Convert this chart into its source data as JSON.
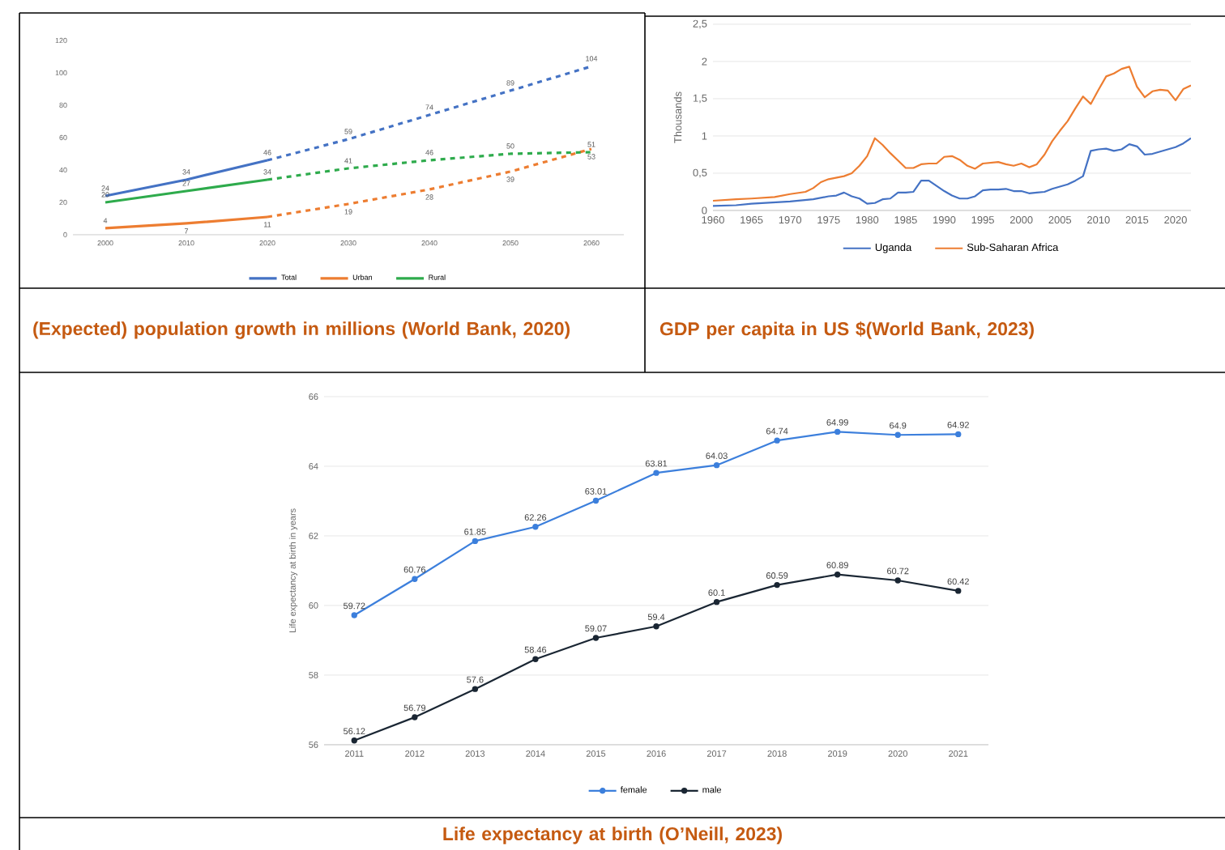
{
  "chart_data": [
    {
      "type": "line",
      "title": "(Expected) population growth in millions (World Bank, 2020)",
      "xlim": [
        1996,
        2064
      ],
      "xticks": [
        2000,
        2010,
        2020,
        2030,
        2040,
        2050,
        2060
      ],
      "ylim": [
        0,
        120
      ],
      "yticks": [
        0,
        20,
        40,
        60,
        80,
        100,
        120
      ],
      "legend": "bottom",
      "series": [
        {
          "name": "Total",
          "color": "#4472c4",
          "x": [
            2000,
            2010,
            2020
          ],
          "values": [
            24,
            34,
            46
          ],
          "value_labels": [
            "24",
            "34",
            "46"
          ]
        },
        {
          "color": "#4472c4",
          "line_style": "dashed",
          "x": [
            2020,
            2030,
            2040,
            2050,
            2060
          ],
          "values": [
            46,
            59,
            74,
            89,
            104
          ],
          "value_labels": [
            null,
            "59",
            "74",
            "89",
            "104"
          ]
        },
        {
          "name": "Urban",
          "color": "#ed7d31",
          "x": [
            2000,
            2010,
            2020
          ],
          "values": [
            4,
            7,
            11
          ],
          "value_labels": [
            "4",
            "7",
            "11"
          ]
        },
        {
          "color": "#ed7d31",
          "line_style": "dashed",
          "x": [
            2020,
            2030,
            2040,
            2050,
            2060
          ],
          "values": [
            11,
            19,
            28,
            39,
            53
          ],
          "value_labels": [
            null,
            "19",
            "28",
            "39",
            "53"
          ]
        },
        {
          "name": "Rural",
          "color": "#2eab4c",
          "x": [
            2000,
            2010,
            2020
          ],
          "values": [
            20,
            27,
            34
          ],
          "value_labels": [
            "20",
            "27",
            "34"
          ]
        },
        {
          "color": "#2eab4c",
          "line_style": "dashed",
          "x": [
            2020,
            2030,
            2040,
            2050,
            2060
          ],
          "values": [
            34,
            41,
            46,
            50,
            51
          ],
          "value_labels": [
            null,
            "41",
            "46",
            "50",
            "51"
          ]
        }
      ]
    },
    {
      "type": "line",
      "title": "GDP per capita in US $(World Bank, 2023)",
      "ylabel": "Thousands",
      "xlim": [
        1960,
        2022
      ],
      "xticks": [
        1960,
        1965,
        1970,
        1975,
        1980,
        1985,
        1990,
        1995,
        2000,
        2005,
        2010,
        2015,
        2020
      ],
      "ylim": [
        0,
        2.5
      ],
      "yticks": [
        0,
        {
          "value": 0.5,
          "label": "0,5"
        },
        1,
        {
          "value": 1.5,
          "label": "1,5"
        },
        2,
        {
          "value": 2.5,
          "label": "2,5"
        }
      ],
      "grid": "y",
      "legend": "bottom",
      "series": [
        {
          "name": "Uganda",
          "color": "#4472c4",
          "x": [
            1960,
            1963,
            1965,
            1970,
            1973,
            1975,
            1976,
            1977,
            1978,
            1979,
            1980,
            1981,
            1982,
            1983,
            1984,
            1985,
            1986,
            1987,
            1988,
            1989,
            1990,
            1991,
            1992,
            1993,
            1994,
            1995,
            1996,
            1997,
            1998,
            1999,
            2000,
            2001,
            2002,
            2003,
            2004,
            2005,
            2006,
            2007,
            2008,
            2009,
            2010,
            2011,
            2012,
            2013,
            2014,
            2015,
            2016,
            2017,
            2018,
            2019,
            2020,
            2021,
            2022
          ],
          "values": [
            0.06,
            0.07,
            0.09,
            0.12,
            0.15,
            0.19,
            0.2,
            0.24,
            0.19,
            0.16,
            0.09,
            0.1,
            0.15,
            0.16,
            0.24,
            0.24,
            0.25,
            0.4,
            0.4,
            0.33,
            0.26,
            0.2,
            0.16,
            0.16,
            0.19,
            0.27,
            0.28,
            0.28,
            0.29,
            0.26,
            0.26,
            0.23,
            0.24,
            0.25,
            0.29,
            0.32,
            0.35,
            0.4,
            0.46,
            0.8,
            0.82,
            0.83,
            0.8,
            0.82,
            0.89,
            0.86,
            0.75,
            0.76,
            0.79,
            0.82,
            0.85,
            0.9,
            0.97
          ]
        },
        {
          "name": "Sub-Saharan Africa",
          "color": "#ed7d31",
          "x": [
            1960,
            1963,
            1965,
            1968,
            1970,
            1972,
            1973,
            1974,
            1975,
            1977,
            1978,
            1979,
            1980,
            1981,
            1982,
            1983,
            1984,
            1985,
            1986,
            1987,
            1988,
            1989,
            1990,
            1991,
            1992,
            1993,
            1994,
            1995,
            1997,
            1998,
            1999,
            2000,
            2001,
            2002,
            2003,
            2004,
            2005,
            2006,
            2007,
            2008,
            2009,
            2010,
            2011,
            2012,
            2013,
            2014,
            2015,
            2016,
            2017,
            2018,
            2019,
            2020,
            2021,
            2022
          ],
          "values": [
            0.13,
            0.15,
            0.16,
            0.18,
            0.22,
            0.25,
            0.3,
            0.38,
            0.42,
            0.46,
            0.5,
            0.6,
            0.73,
            0.97,
            0.88,
            0.77,
            0.67,
            0.57,
            0.57,
            0.62,
            0.63,
            0.63,
            0.72,
            0.73,
            0.68,
            0.6,
            0.56,
            0.63,
            0.65,
            0.62,
            0.6,
            0.63,
            0.58,
            0.62,
            0.75,
            0.93,
            1.07,
            1.2,
            1.37,
            1.53,
            1.43,
            1.62,
            1.8,
            1.84,
            1.9,
            1.93,
            1.66,
            1.52,
            1.6,
            1.62,
            1.61,
            1.48,
            1.63,
            1.68
          ]
        }
      ]
    },
    {
      "type": "line",
      "title": "Life expectancy at birth (O’Neill, 2023)",
      "ylabel": "Life expectancy at birth in years",
      "categories": [
        "2011",
        "2012",
        "2013",
        "2014",
        "2015",
        "2016",
        "2017",
        "2018",
        "2019",
        "2020",
        "2021"
      ],
      "ylim": [
        56,
        66
      ],
      "yticks": [
        56,
        58,
        60,
        62,
        64,
        66
      ],
      "grid": "y",
      "legend": "bottom",
      "marker": "circle",
      "data_labels": true,
      "series": [
        {
          "name": "female",
          "color": "#3c7fdc",
          "values": [
            59.72,
            60.76,
            61.85,
            62.26,
            63.01,
            63.81,
            64.03,
            64.74,
            64.99,
            64.9,
            64.92
          ]
        },
        {
          "name": "male",
          "color": "#1a2633",
          "values": [
            56.12,
            56.79,
            57.6,
            58.46,
            59.07,
            59.4,
            60.1,
            60.59,
            60.89,
            60.72,
            60.42
          ]
        }
      ]
    }
  ]
}
